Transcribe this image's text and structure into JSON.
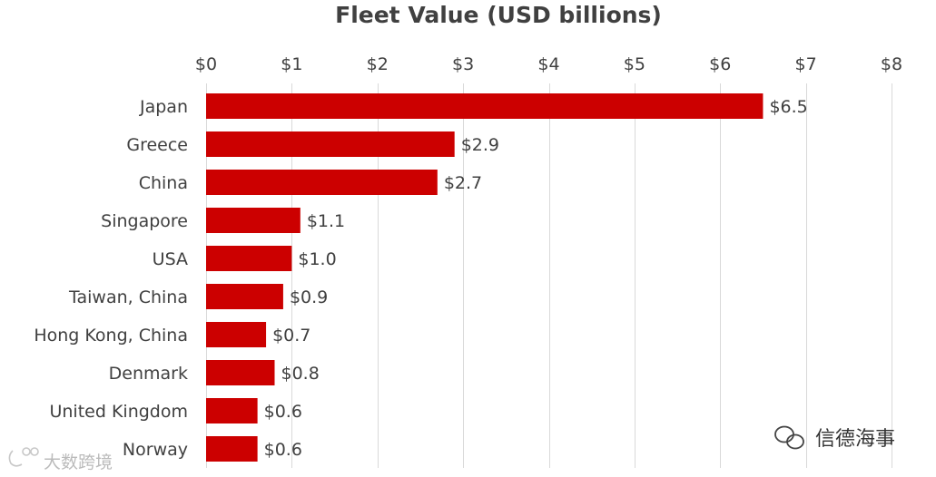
{
  "chart_data": {
    "type": "bar",
    "orientation": "horizontal",
    "title": "Fleet Value (USD billions)",
    "categories": [
      "Japan",
      "Greece",
      "China",
      "Singapore",
      "USA",
      "Taiwan, China",
      "Hong Kong, China",
      "Denmark",
      "United Kingdom",
      "Norway"
    ],
    "values": [
      6.5,
      2.9,
      2.7,
      1.1,
      1.0,
      0.9,
      0.7,
      0.8,
      0.6,
      0.6
    ],
    "data_labels": [
      "$6.5",
      "$2.9",
      "$2.7",
      "$1.1",
      "$1.0",
      "$0.9",
      "$0.7",
      "$0.8",
      "$0.6",
      "$0.6"
    ],
    "x_ticks": [
      0,
      1,
      2,
      3,
      4,
      5,
      6,
      7,
      8
    ],
    "x_tick_labels": [
      "$0",
      "$1",
      "$2",
      "$3",
      "$4",
      "$5",
      "$6",
      "$7",
      "$8"
    ],
    "xlim": [
      0,
      8
    ],
    "x_axis_position": "top",
    "grid": true,
    "bar_color": "#cc0000",
    "xlabel": "",
    "ylabel": ""
  },
  "watermarks": {
    "left_text": "大数跨境",
    "right_text": "信德海事"
  },
  "colors": {
    "text": "#404040",
    "grid": "#d9d9d9",
    "watermark": "#bbbbbb"
  }
}
